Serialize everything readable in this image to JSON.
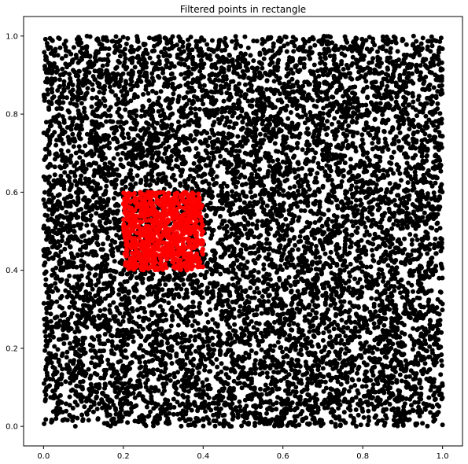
{
  "chart_data": {
    "type": "scatter",
    "title": "Filtered points in rectangle",
    "xlabel": "",
    "ylabel": "",
    "xlim": [
      -0.05,
      1.05
    ],
    "ylim": [
      -0.05,
      1.05
    ],
    "xticks": [
      0.0,
      0.2,
      0.4,
      0.6,
      0.8,
      1.0
    ],
    "yticks": [
      0.0,
      0.2,
      0.4,
      0.6,
      0.8,
      1.0
    ],
    "xtick_labels": [
      "0.0",
      "0.2",
      "0.4",
      "0.6",
      "0.8",
      "1.0"
    ],
    "ytick_labels": [
      "0.0",
      "0.2",
      "0.4",
      "0.6",
      "0.8",
      "1.0"
    ],
    "grid": false,
    "legend": "none",
    "series": [
      {
        "color": "#000000",
        "marker": "circle",
        "distribution": "uniform",
        "x_range": [
          0.0,
          1.0
        ],
        "y_range": [
          0.0,
          1.0
        ]
      },
      {
        "color": "#ff0000",
        "marker": "circle",
        "distribution": "uniform",
        "x_range": [
          0.2,
          0.4
        ],
        "y_range": [
          0.4,
          0.6
        ]
      }
    ]
  }
}
